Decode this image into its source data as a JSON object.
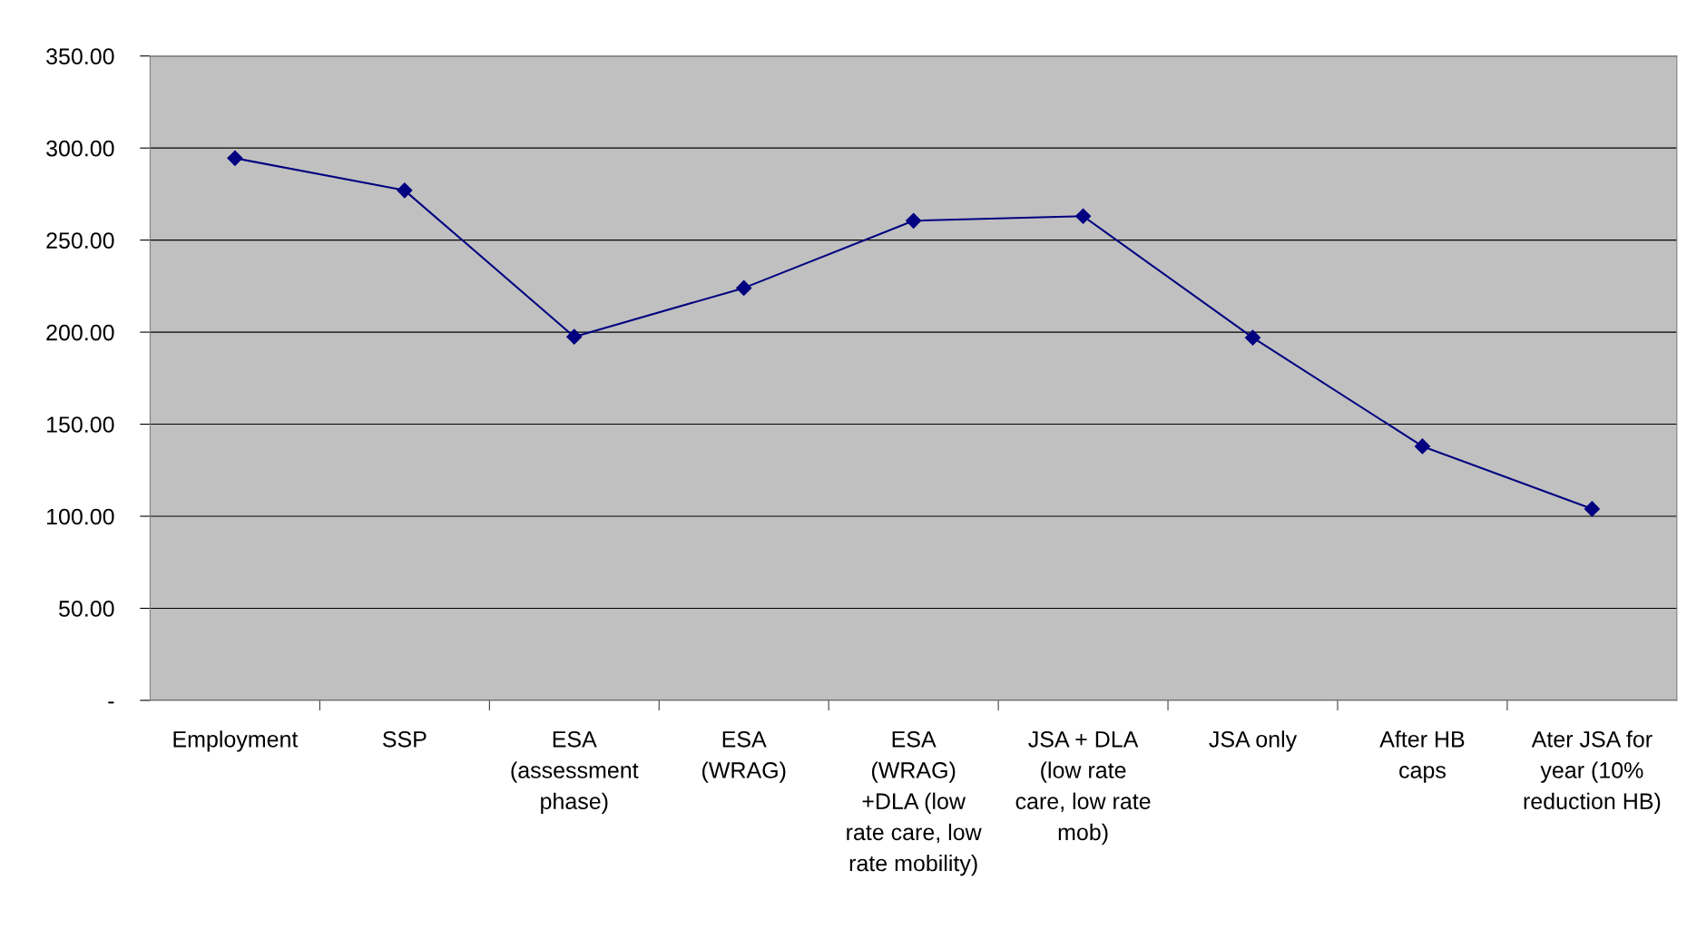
{
  "chart_data": {
    "type": "line",
    "categories": [
      "Employment",
      "SSP",
      "ESA\n(assessment\nphase)",
      "ESA\n(WRAG)",
      "ESA\n(WRAG)\n+DLA (low\nrate care, low\nrate mobility)",
      "JSA + DLA\n(low rate\ncare, low rate\nmob)",
      "JSA only",
      "After HB\ncaps",
      "Ater JSA for\nyear (10%\nreduction HB)"
    ],
    "series": [
      {
        "color": "#000080",
        "values": [
          294.5,
          277,
          197.5,
          224,
          260.5,
          263,
          197,
          138,
          104
        ]
      }
    ],
    "ylim": [
      0,
      350
    ],
    "yticks": [
      {
        "value": 0,
        "label": "-"
      },
      {
        "value": 50,
        "label": "50.00"
      },
      {
        "value": 100,
        "label": "100.00"
      },
      {
        "value": 150,
        "label": "150.00"
      },
      {
        "value": 200,
        "label": "200.00"
      },
      {
        "value": 250,
        "label": "250.00"
      },
      {
        "value": 300,
        "label": "300.00"
      },
      {
        "value": 350,
        "label": "350.00"
      }
    ],
    "grid": "y",
    "marker": "diamond"
  }
}
